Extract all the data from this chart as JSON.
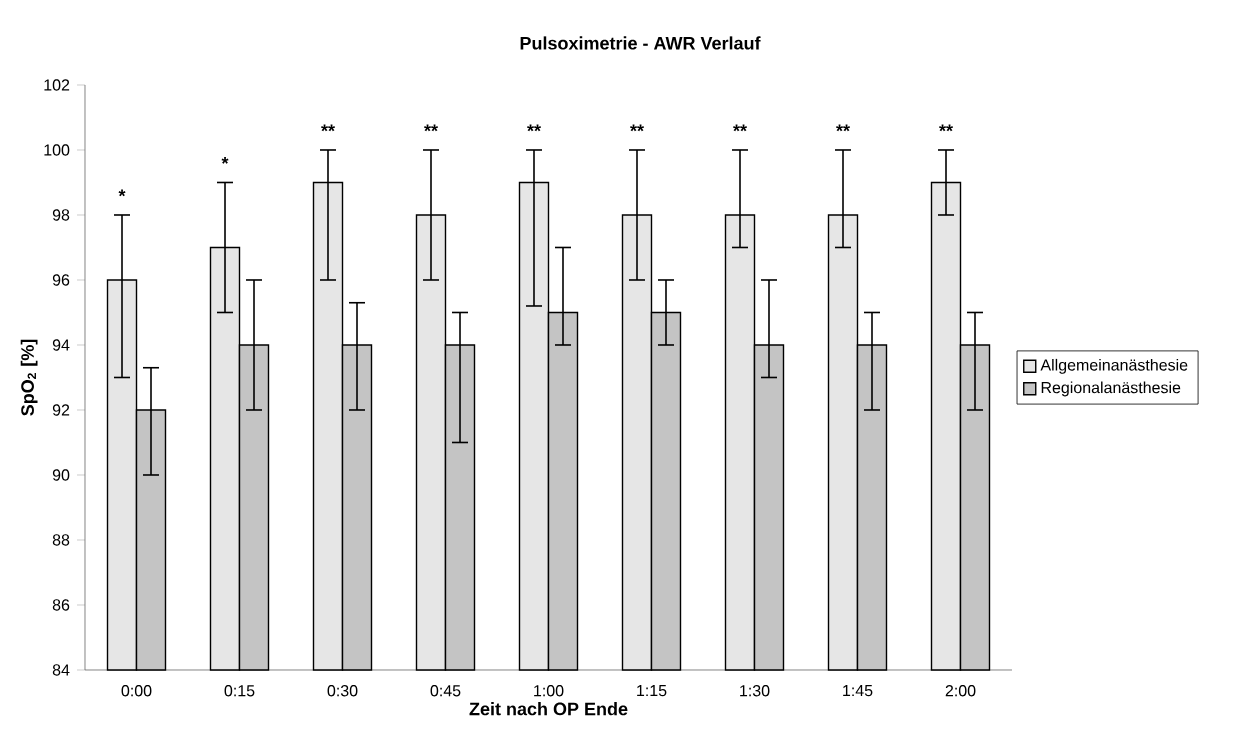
{
  "chart_data": {
    "type": "bar",
    "title": "Pulsoximetrie - AWR Verlauf",
    "xlabel": "Zeit nach OP Ende",
    "ylabel": "SpO$_{2}$ [%]",
    "categories": [
      "0:00",
      "0:15",
      "0:30",
      "0:45",
      "1:00",
      "1:15",
      "1:30",
      "1:45",
      "2:00"
    ],
    "series": [
      {
        "name": "Allgemeinanästhesie",
        "color": "#e6e6e6",
        "values": [
          96,
          97,
          99,
          98,
          99,
          98,
          98,
          98,
          99
        ],
        "errors": [
          [
            93,
            98
          ],
          [
            95,
            99
          ],
          [
            96,
            100
          ],
          [
            96,
            100
          ],
          [
            95.2,
            100
          ],
          [
            96,
            100
          ],
          [
            97,
            100
          ],
          [
            97,
            100
          ],
          [
            98,
            100
          ]
        ]
      },
      {
        "name": "Regionalanästhesie",
        "color": "#c4c4c4",
        "values": [
          92,
          94,
          94,
          94,
          95,
          95,
          94,
          94,
          94
        ],
        "errors": [
          [
            90,
            93.3
          ],
          [
            92,
            96
          ],
          [
            92,
            95.3
          ],
          [
            91,
            95
          ],
          [
            94,
            97
          ],
          [
            94,
            96
          ],
          [
            93,
            96
          ],
          [
            92,
            95
          ],
          [
            92,
            95
          ]
        ]
      }
    ],
    "ylim": [
      84,
      102
    ],
    "yticks": [
      84,
      86,
      88,
      90,
      92,
      94,
      96,
      98,
      100,
      102
    ],
    "grid": false,
    "legend": "right",
    "annotations": [
      "*",
      "*",
      "**",
      "**",
      "**",
      "**",
      "**",
      "**",
      "**"
    ]
  }
}
